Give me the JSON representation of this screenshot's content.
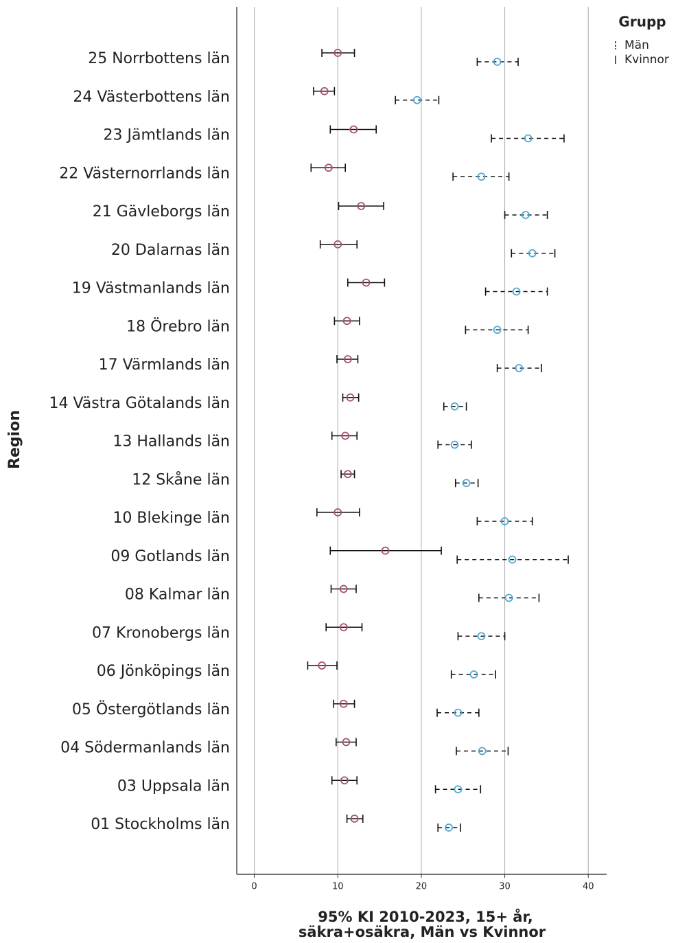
{
  "chart_data": {
    "type": "errorbar",
    "ylabel": "Region",
    "xlabel": [
      "95% KI 2010-2023, 15+ år,",
      "säkra+osäkra, Män vs Kvinnor"
    ],
    "legend_title": "Grupp",
    "legend_position": "top-right",
    "grid": true,
    "xlim": [
      -2.1,
      42.2
    ],
    "xticks": [
      0,
      10,
      20,
      30,
      40
    ],
    "categories": [
      "25 Norrbottens län",
      "24 Västerbottens län",
      "23 Jämtlands län",
      "22 Västernorrlands län",
      "21 Gävleborgs län",
      "20 Dalarnas län",
      "19 Västmanlands län",
      "18 Örebro län",
      "17 Värmlands län",
      "14 Västra Götalands län",
      "13 Hallands län",
      "12 Skåne län",
      "10 Blekinge län",
      "09 Gotlands län",
      "08 Kalmar län",
      "07 Kronobergs län",
      "06 Jönköpings län",
      "05 Östergötlands län",
      "04 Södermanlands län",
      "03 Uppsala län",
      "01 Stockholms län"
    ],
    "series": [
      {
        "name": "Män",
        "color": "#4fa8d8",
        "dashed": true,
        "values": [
          29.1,
          19.5,
          32.8,
          27.2,
          32.5,
          33.3,
          31.4,
          29.1,
          31.7,
          24.0,
          24.0,
          25.4,
          30.0,
          30.9,
          30.5,
          27.2,
          26.3,
          24.4,
          27.3,
          24.4,
          23.3
        ],
        "low": [
          26.7,
          16.9,
          28.4,
          23.8,
          30.0,
          30.8,
          27.7,
          25.3,
          29.1,
          22.7,
          22.0,
          24.1,
          26.7,
          24.3,
          26.9,
          24.4,
          23.6,
          21.9,
          24.2,
          21.7,
          22.0
        ],
        "high": [
          31.6,
          22.1,
          37.1,
          30.5,
          35.1,
          36.0,
          35.1,
          32.8,
          34.4,
          25.4,
          26.0,
          26.8,
          33.3,
          37.6,
          34.1,
          30.0,
          28.9,
          26.9,
          30.4,
          27.1,
          24.7
        ]
      },
      {
        "name": "Kvinnor",
        "color": "#a8506e",
        "dashed": false,
        "values": [
          10.0,
          8.4,
          11.9,
          8.9,
          12.8,
          10.0,
          13.4,
          11.1,
          11.2,
          11.5,
          10.9,
          11.2,
          10.0,
          15.7,
          10.7,
          10.7,
          8.1,
          10.7,
          11.0,
          10.8,
          12.0
        ],
        "low": [
          8.1,
          7.1,
          9.1,
          6.8,
          10.1,
          7.9,
          11.2,
          9.6,
          9.9,
          10.6,
          9.3,
          10.4,
          7.5,
          9.1,
          9.2,
          8.6,
          6.4,
          9.5,
          9.8,
          9.3,
          11.1
        ],
        "high": [
          12.0,
          9.6,
          14.6,
          10.9,
          15.5,
          12.3,
          15.6,
          12.6,
          12.4,
          12.5,
          12.3,
          12.0,
          12.6,
          22.4,
          12.2,
          12.9,
          9.9,
          12.0,
          12.2,
          12.3,
          13.0
        ]
      }
    ]
  }
}
